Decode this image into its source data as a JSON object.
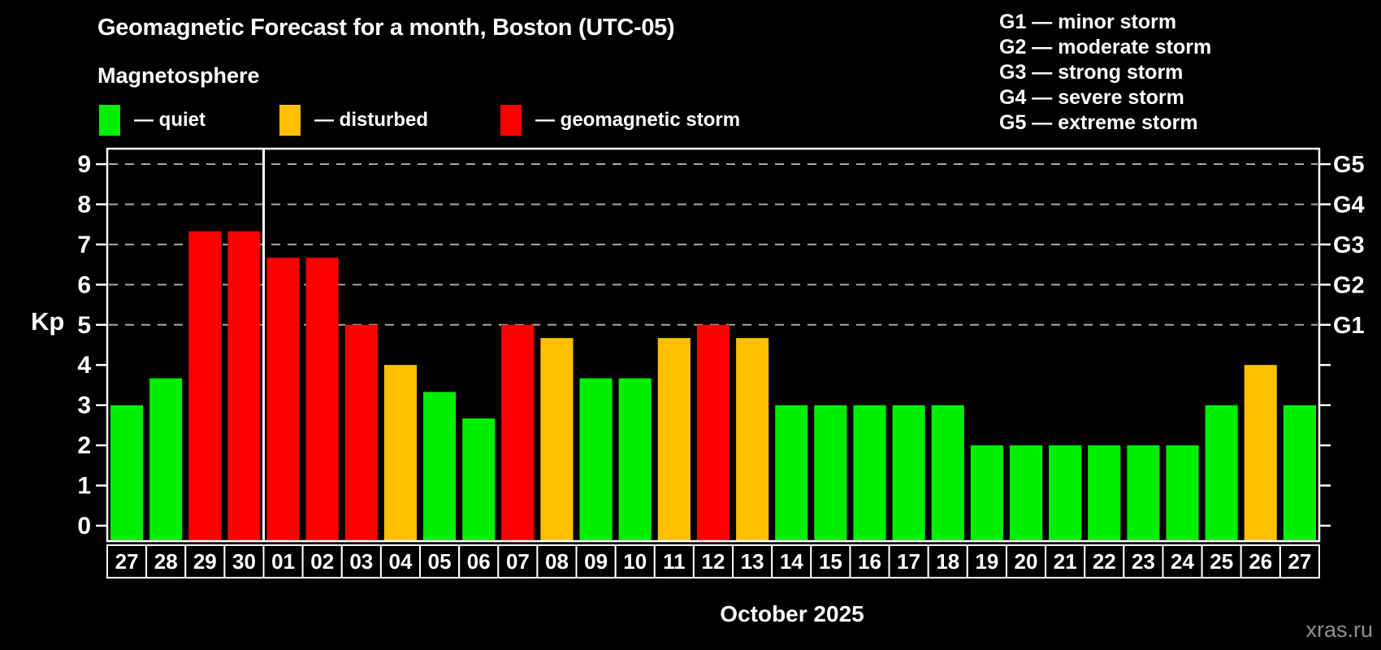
{
  "header": {
    "title": "Geomagnetic Forecast for a month, Boston (UTC-05)",
    "subtitle": "Magnetosphere"
  },
  "legend": {
    "items": [
      {
        "key": "quiet",
        "label": "— quiet",
        "color": "#00EE00"
      },
      {
        "key": "disturbed",
        "label": "— disturbed",
        "color": "#FFC000"
      },
      {
        "key": "storm",
        "label": "— geomagnetic storm",
        "color": "#FF0000"
      }
    ]
  },
  "storm_scale_legend": {
    "items": [
      "G1 — minor storm",
      "G2 — moderate storm",
      "G3 — strong storm",
      "G4 — severe storm",
      "G5 — extreme storm"
    ]
  },
  "footer": {
    "month_label": "October 2025",
    "watermark": "xras.ru"
  },
  "chart_data": {
    "type": "bar",
    "title": "Geomagnetic Forecast for a month, Boston (UTC-05)",
    "ylabel": "Kp",
    "xlabel": "October 2025",
    "ylim": [
      -0.4,
      9.4
    ],
    "yticks": [
      0,
      1,
      2,
      3,
      4,
      5,
      6,
      7,
      8,
      9
    ],
    "grid_on": true,
    "gridlines_at": [
      5,
      6,
      7,
      8,
      9
    ],
    "right_axis": [
      {
        "kp": 5,
        "label": "G1"
      },
      {
        "kp": 6,
        "label": "G2"
      },
      {
        "kp": 7,
        "label": "G3"
      },
      {
        "kp": 8,
        "label": "G4"
      },
      {
        "kp": 9,
        "label": "G5"
      }
    ],
    "month_separator_after_index": 3,
    "categories": [
      "27",
      "28",
      "29",
      "30",
      "01",
      "02",
      "03",
      "04",
      "05",
      "06",
      "07",
      "08",
      "09",
      "10",
      "11",
      "12",
      "13",
      "14",
      "15",
      "16",
      "17",
      "18",
      "19",
      "20",
      "21",
      "22",
      "23",
      "24",
      "25",
      "26",
      "27"
    ],
    "values": [
      3,
      3.67,
      7.33,
      7.33,
      6.67,
      6.67,
      5,
      4,
      3.33,
      2.67,
      5,
      4.67,
      3.67,
      3.67,
      4.67,
      5,
      4.67,
      3,
      3,
      3,
      3,
      3,
      2,
      2,
      2,
      2,
      2,
      2,
      3,
      4,
      3
    ],
    "statuses": [
      "quiet",
      "quiet",
      "storm",
      "storm",
      "storm",
      "storm",
      "storm",
      "disturbed",
      "quiet",
      "quiet",
      "storm",
      "disturbed",
      "quiet",
      "quiet",
      "disturbed",
      "storm",
      "disturbed",
      "quiet",
      "quiet",
      "quiet",
      "quiet",
      "quiet",
      "quiet",
      "quiet",
      "quiet",
      "quiet",
      "quiet",
      "quiet",
      "quiet",
      "disturbed",
      "quiet"
    ],
    "colors": {
      "quiet": "#00EE00",
      "disturbed": "#FFC000",
      "storm": "#FF0000",
      "axis": "#FFFFFF",
      "grid": "#A6A6A6",
      "text": "#FFFFFF",
      "watermark": "#8F8F8F",
      "background": "#000000"
    }
  }
}
